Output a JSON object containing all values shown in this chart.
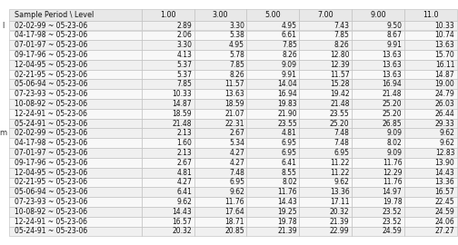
{
  "col_headers": [
    "Sample Period \\ Level",
    "1.00",
    "3.00",
    "5.00",
    "7.00",
    "9.00",
    "11.0"
  ],
  "row_label_l": "l",
  "row_label_m": "m",
  "rows_l": [
    [
      "02-02-99 ~ 05-23-06",
      "2.89",
      "3.30",
      "4.95",
      "7.43",
      "9.50",
      "10.33"
    ],
    [
      "04-17-98 ~ 05-23-06",
      "2.06",
      "5.38",
      "6.61",
      "7.85",
      "8.67",
      "10.74"
    ],
    [
      "07-01-97 ~ 05-23-06",
      "3.30",
      "4.95",
      "7.85",
      "8.26",
      "9.91",
      "13.63"
    ],
    [
      "09-17-96 ~ 05-23-06",
      "4.13",
      "5.78",
      "8.26",
      "12.80",
      "13.63",
      "15.70"
    ],
    [
      "12-04-95 ~ 05-23-06",
      "5.37",
      "7.85",
      "9.09",
      "12.39",
      "13.63",
      "16.11"
    ],
    [
      "02-21-95 ~ 05-23-06",
      "5.37",
      "8.26",
      "9.91",
      "11.57",
      "13.63",
      "14.87"
    ],
    [
      "05-06-94 ~ 05-23-06",
      "7.85",
      "11.57",
      "14.04",
      "15.28",
      "16.94",
      "19.00"
    ],
    [
      "07-23-93 ~ 05-23-06",
      "10.33",
      "13.63",
      "16.94",
      "19.42",
      "21.48",
      "24.79"
    ],
    [
      "10-08-92 ~ 05-23-06",
      "14.87",
      "18.59",
      "19.83",
      "21.48",
      "25.20",
      "26.03"
    ],
    [
      "12-24-91 ~ 05-23-06",
      "18.59",
      "21.07",
      "21.90",
      "23.55",
      "25.20",
      "26.44"
    ],
    [
      "05-24-91 ~ 05-23-06",
      "21.48",
      "22.31",
      "23.55",
      "25.20",
      "26.85",
      "29.33"
    ]
  ],
  "rows_m": [
    [
      "02-02-99 ~ 05-23-06",
      "2.13",
      "2.67",
      "4.81",
      "7.48",
      "9.09",
      "9.62"
    ],
    [
      "04-17-98 ~ 05-23-06",
      "1.60",
      "5.34",
      "6.95",
      "7.48",
      "8.02",
      "9.62"
    ],
    [
      "07-01-97 ~ 05-23-06",
      "2.13",
      "4.27",
      "6.95",
      "6.95",
      "9.09",
      "12.83"
    ],
    [
      "09-17-96 ~ 05-23-06",
      "2.67",
      "4.27",
      "6.41",
      "11.22",
      "11.76",
      "13.90"
    ],
    [
      "12-04-95 ~ 05-23-06",
      "4.81",
      "7.48",
      "8.55",
      "11.22",
      "12.29",
      "14.43"
    ],
    [
      "02-21-95 ~ 05-23-06",
      "4.27",
      "6.95",
      "8.02",
      "9.62",
      "11.76",
      "13.36"
    ],
    [
      "05-06-94 ~ 05-23-06",
      "6.41",
      "9.62",
      "11.76",
      "13.36",
      "14.97",
      "16.57"
    ],
    [
      "07-23-93 ~ 05-23-06",
      "9.62",
      "11.76",
      "14.43",
      "17.11",
      "19.78",
      "22.45"
    ],
    [
      "10-08-92 ~ 05-23-06",
      "14.43",
      "17.64",
      "19.25",
      "20.32",
      "23.52",
      "24.59"
    ],
    [
      "12-24-91 ~ 05-23-06",
      "16.57",
      "18.71",
      "19.78",
      "21.39",
      "23.52",
      "24.06"
    ],
    [
      "05-24-91 ~ 05-23-06",
      "20.32",
      "20.85",
      "21.39",
      "22.99",
      "24.59",
      "27.27"
    ]
  ],
  "font_size": 5.5,
  "header_font_size": 5.8,
  "header_bg": "#e8e8e8",
  "row_bg_even": "#f0f0f0",
  "row_bg_odd": "#f8f8f8",
  "edge_color": "#bbbbbb",
  "label_color": "#333333"
}
